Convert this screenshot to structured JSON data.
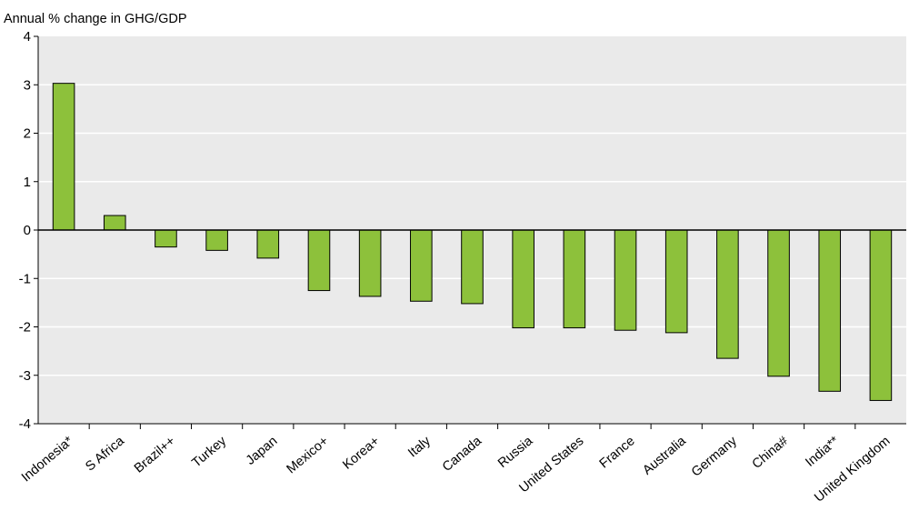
{
  "chart_data": {
    "type": "bar",
    "ylabel": "Annual % change in GHG/GDP",
    "ylim": [
      -4,
      4
    ],
    "yticks": [
      4,
      3,
      2,
      1,
      0,
      -1,
      -2,
      -3,
      -4
    ],
    "grid": true,
    "legend": false,
    "bar_color": "#8dc13b",
    "background_color": "#eaeaea",
    "categories": [
      "Indonesia*",
      "S Africa",
      "Brazil++",
      "Turkey",
      "Japan",
      "Mexico+",
      "Korea+",
      "Italy",
      "Canada",
      "Russia",
      "United States",
      "France",
      "Australia",
      "Germany",
      "China#",
      "India**",
      "United Kingdom"
    ],
    "values": [
      3.03,
      0.3,
      -0.35,
      -0.42,
      -0.58,
      -1.25,
      -1.37,
      -1.47,
      -1.52,
      -2.02,
      -2.02,
      -2.07,
      -2.12,
      -2.65,
      -3.02,
      -3.33,
      -3.52
    ]
  }
}
